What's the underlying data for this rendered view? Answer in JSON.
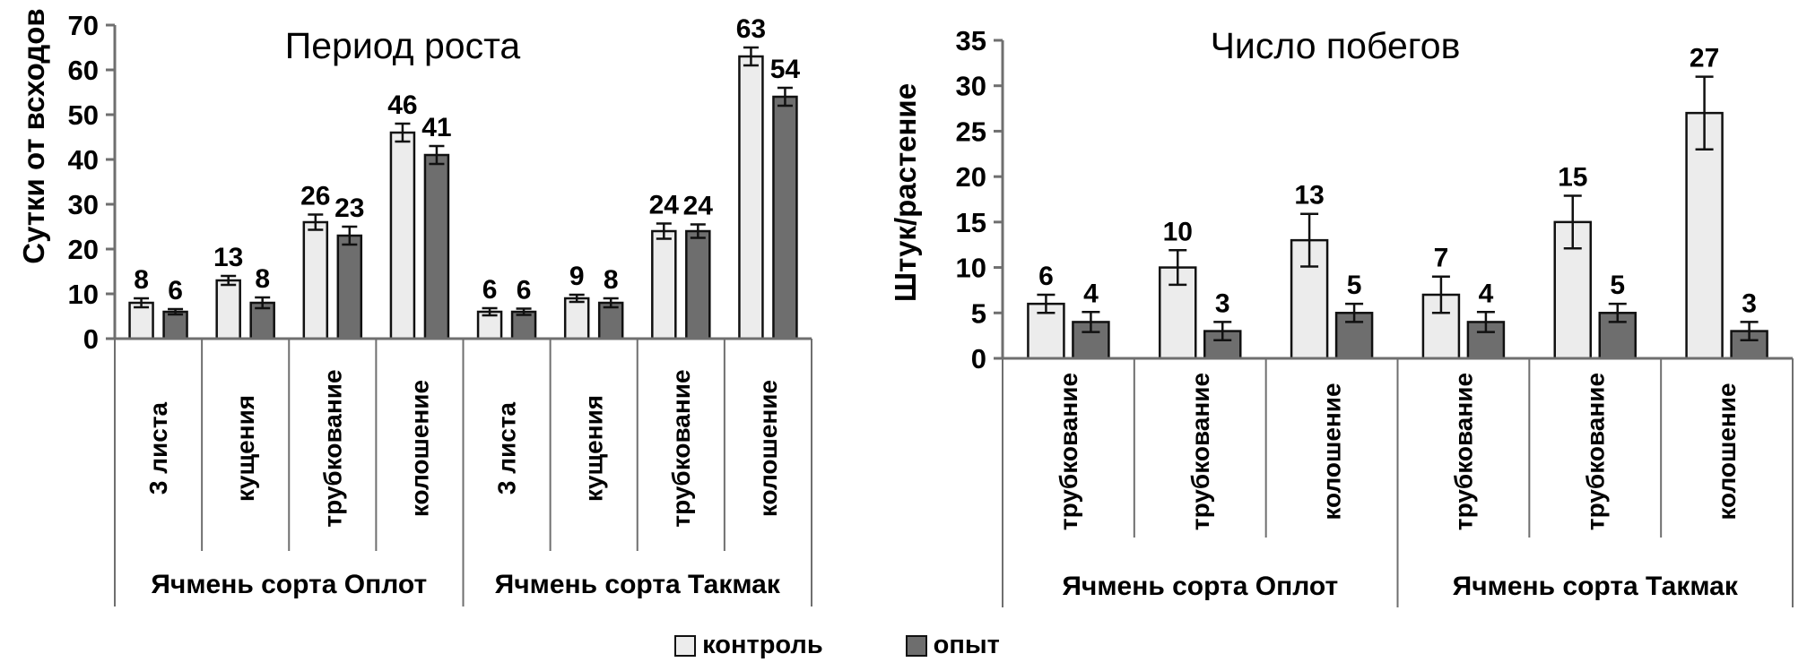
{
  "colors": {
    "background": "#ffffff",
    "control_fill": "#ececec",
    "experiment_fill": "#6e6e6e",
    "bar_stroke": "#111111",
    "error_bar": "#111111",
    "axis_line": "#6f6f6f",
    "text": "#000000"
  },
  "legend": {
    "position": "bottom-center",
    "items": [
      {
        "id": "control",
        "label": "контроль"
      },
      {
        "id": "experiment",
        "label": "опыт"
      }
    ]
  },
  "chart_data": [
    {
      "type": "bar",
      "title": "Период роста",
      "ylabel": "Сутки от всходов",
      "xlabel": "",
      "ylim": [
        0,
        70
      ],
      "ytick_step": 10,
      "yticks": [
        0,
        10,
        20,
        30,
        40,
        50,
        60,
        70
      ],
      "grid": false,
      "error_bars": true,
      "groups": [
        {
          "label": "Ячмень сорта Оплот",
          "categories": [
            "3 листа",
            "кущения",
            "трубкование",
            "колошение"
          ]
        },
        {
          "label": "Ячмень сорта Такмак",
          "categories": [
            "3 листа",
            "кущения",
            "трубкование",
            "колошение"
          ]
        }
      ],
      "series": [
        {
          "name": "контроль",
          "values": [
            8,
            13,
            26,
            46,
            6,
            9,
            24,
            63
          ],
          "errors": [
            1,
            1,
            1.7,
            2,
            0.8,
            0.8,
            1.7,
            2
          ]
        },
        {
          "name": "опыт",
          "values": [
            6,
            8,
            23,
            41,
            6,
            8,
            24,
            54
          ],
          "errors": [
            0.6,
            1.2,
            2,
            2,
            0.7,
            1,
            1.5,
            2
          ]
        }
      ]
    },
    {
      "type": "bar",
      "title": "Число побегов",
      "ylabel": "Штук/растение",
      "xlabel": "",
      "ylim": [
        0,
        35
      ],
      "ytick_step": 5,
      "yticks": [
        0,
        5,
        10,
        15,
        20,
        25,
        30,
        35
      ],
      "grid": false,
      "error_bars": true,
      "groups": [
        {
          "label": "Ячмень сорта Оплот",
          "categories": [
            "трубкование",
            "трубкование",
            "колошение"
          ]
        },
        {
          "label": "Ячмень сорта Такмак",
          "categories": [
            "трубкование",
            "трубкование",
            "колошение"
          ]
        }
      ],
      "series": [
        {
          "name": "контроль",
          "values": [
            6,
            10,
            13,
            7,
            15,
            27
          ],
          "errors": [
            1,
            1.9,
            2.9,
            2,
            2.9,
            4
          ]
        },
        {
          "name": "опыт",
          "values": [
            4,
            3,
            5,
            4,
            5,
            3
          ],
          "errors": [
            1.1,
            1,
            1,
            1.1,
            1,
            1
          ]
        }
      ]
    }
  ]
}
